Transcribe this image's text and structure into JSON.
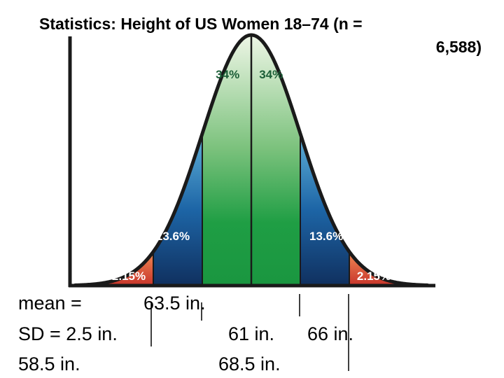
{
  "chart_data": {
    "type": "area",
    "title_line1": "Statistics:  Height of US Women 18–74 (n =",
    "title_line2": "6,588)",
    "bands": [
      {
        "from_sd": -3,
        "to_sd": -2,
        "percent": "2.15%",
        "color": "#d9543a"
      },
      {
        "from_sd": -2,
        "to_sd": -1,
        "percent": "13.6%",
        "color": "#1a4f8f"
      },
      {
        "from_sd": -1,
        "to_sd": 0,
        "percent": "34%",
        "color": "#22a142"
      },
      {
        "from_sd": 0,
        "to_sd": 1,
        "percent": "34%",
        "color": "#22a142"
      },
      {
        "from_sd": 1,
        "to_sd": 2,
        "percent": "13.6%",
        "color": "#1a4f8f"
      },
      {
        "from_sd": 2,
        "to_sd": 3,
        "percent": "2.15%",
        "color": "#d9543a"
      }
    ],
    "x_range_sd": [
      -3.6,
      3.6
    ],
    "curve_color": "#1a1a1a"
  },
  "annotations": {
    "mean_label": "mean =",
    "mean_value": "63.5 in.",
    "sd_label": "SD = 2.5 in.",
    "tick_minus1": "61 in.",
    "tick_plus1": "66 in.",
    "tick_minus2": "58.5 in.",
    "tick_plus2": "68.5 in."
  }
}
